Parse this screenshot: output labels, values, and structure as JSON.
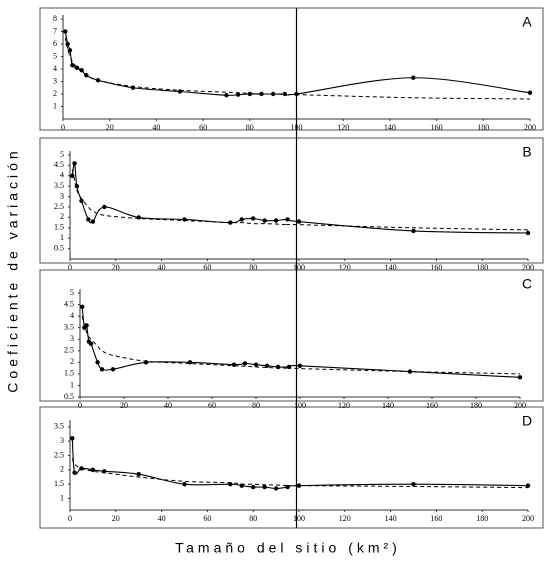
{
  "axis_labels": {
    "x": "Tamaño del sitio (km²)",
    "y": "Coeficiente de variación"
  },
  "chart_data": [
    {
      "type": "line",
      "label": "A",
      "xlim": [
        0,
        200
      ],
      "xticks": [
        0,
        20,
        40,
        60,
        80,
        100,
        120,
        140,
        160,
        180,
        200
      ],
      "ylim": [
        0,
        8
      ],
      "yticks": [
        1,
        2,
        3,
        4,
        5,
        6,
        7,
        8
      ],
      "vline": 100,
      "x": [
        1,
        2,
        3,
        4,
        6,
        8,
        10,
        15,
        30,
        50,
        70,
        75,
        80,
        85,
        90,
        95,
        100,
        150,
        200
      ],
      "series": [
        {
          "color": "#000000",
          "dashed": false,
          "markers": true,
          "values": [
            7,
            6,
            5.5,
            4.3,
            4.1,
            3.9,
            3.5,
            3.1,
            2.5,
            2.2,
            1.9,
            1.95,
            2.0,
            2.0,
            2.0,
            2.0,
            2.0,
            3.3,
            2.1
          ]
        },
        {
          "color": "#000000",
          "dashed": true,
          "markers": false,
          "values": [
            6.5,
            5.6,
            5.0,
            4.6,
            4.1,
            3.8,
            3.5,
            3.1,
            2.6,
            2.3,
            2.15,
            2.1,
            2.05,
            2.0,
            2.0,
            1.95,
            1.95,
            1.7,
            1.6
          ]
        }
      ]
    },
    {
      "type": "line",
      "label": "B",
      "xlim": [
        0,
        200
      ],
      "xticks": [
        0,
        20,
        40,
        60,
        80,
        100,
        120,
        140,
        160,
        180,
        200
      ],
      "ylim": [
        0,
        5
      ],
      "yticks": [
        0.5,
        1,
        1.5,
        2,
        2.5,
        3,
        3.5,
        4,
        4.5,
        5
      ],
      "x": [
        1,
        2,
        3,
        5,
        8,
        10,
        15,
        30,
        50,
        70,
        75,
        80,
        85,
        90,
        95,
        100,
        150,
        200
      ],
      "series": [
        {
          "color": "#000000",
          "dashed": false,
          "markers": true,
          "values": [
            4.0,
            4.6,
            3.5,
            2.8,
            1.9,
            1.8,
            2.5,
            2.0,
            1.9,
            1.75,
            1.9,
            1.95,
            1.85,
            1.85,
            1.9,
            1.8,
            1.35,
            1.25
          ]
        },
        {
          "color": "#000000",
          "dashed": true,
          "markers": false,
          "values": [
            4.3,
            3.8,
            3.3,
            2.9,
            2.5,
            2.3,
            2.1,
            1.95,
            1.85,
            1.75,
            1.75,
            1.7,
            1.7,
            1.68,
            1.65,
            1.65,
            1.5,
            1.4
          ]
        }
      ]
    },
    {
      "type": "line",
      "label": "C",
      "xlim": [
        0,
        200
      ],
      "xticks": [
        0,
        20,
        40,
        60,
        80,
        100,
        120,
        140,
        160,
        180,
        200
      ],
      "ylim": [
        0.5,
        5
      ],
      "yticks": [
        0.5,
        1,
        1.5,
        2,
        2.5,
        3,
        3.5,
        4,
        4.5,
        5
      ],
      "x": [
        1,
        2,
        3,
        4,
        5,
        8,
        10,
        15,
        30,
        50,
        70,
        75,
        80,
        85,
        90,
        95,
        100,
        150,
        200
      ],
      "series": [
        {
          "color": "#000000",
          "dashed": false,
          "markers": true,
          "values": [
            4.4,
            3.5,
            3.6,
            2.9,
            2.8,
            2.0,
            1.7,
            1.7,
            2.0,
            2.0,
            1.9,
            1.95,
            1.9,
            1.85,
            1.8,
            1.8,
            1.85,
            1.6,
            1.35
          ]
        },
        {
          "color": "#000000",
          "dashed": true,
          "markers": false,
          "values": [
            4.0,
            3.6,
            3.3,
            3.1,
            3.0,
            2.7,
            2.5,
            2.3,
            2.05,
            1.95,
            1.85,
            1.83,
            1.8,
            1.78,
            1.75,
            1.75,
            1.73,
            1.6,
            1.5
          ]
        }
      ]
    },
    {
      "type": "line",
      "label": "D",
      "xlim": [
        0,
        200
      ],
      "xticks": [
        0,
        20,
        40,
        60,
        80,
        100,
        120,
        140,
        160,
        180,
        200
      ],
      "ylim": [
        0.6,
        3.6
      ],
      "yticks": [
        1,
        1.5,
        2,
        2.5,
        3,
        3.5
      ],
      "x": [
        1,
        2,
        5,
        10,
        15,
        30,
        50,
        70,
        75,
        80,
        85,
        90,
        95,
        100,
        150,
        200
      ],
      "series": [
        {
          "color": "#000000",
          "dashed": false,
          "markers": true,
          "values": [
            3.1,
            1.9,
            2.05,
            2.0,
            1.95,
            1.85,
            1.5,
            1.5,
            1.45,
            1.4,
            1.4,
            1.35,
            1.4,
            1.45,
            1.5,
            1.45
          ]
        },
        {
          "color": "#000000",
          "dashed": true,
          "markers": false,
          "values": [
            2.4,
            2.2,
            2.05,
            1.95,
            1.9,
            1.75,
            1.6,
            1.55,
            1.5,
            1.5,
            1.48,
            1.47,
            1.45,
            1.45,
            1.42,
            1.38
          ]
        }
      ]
    }
  ]
}
